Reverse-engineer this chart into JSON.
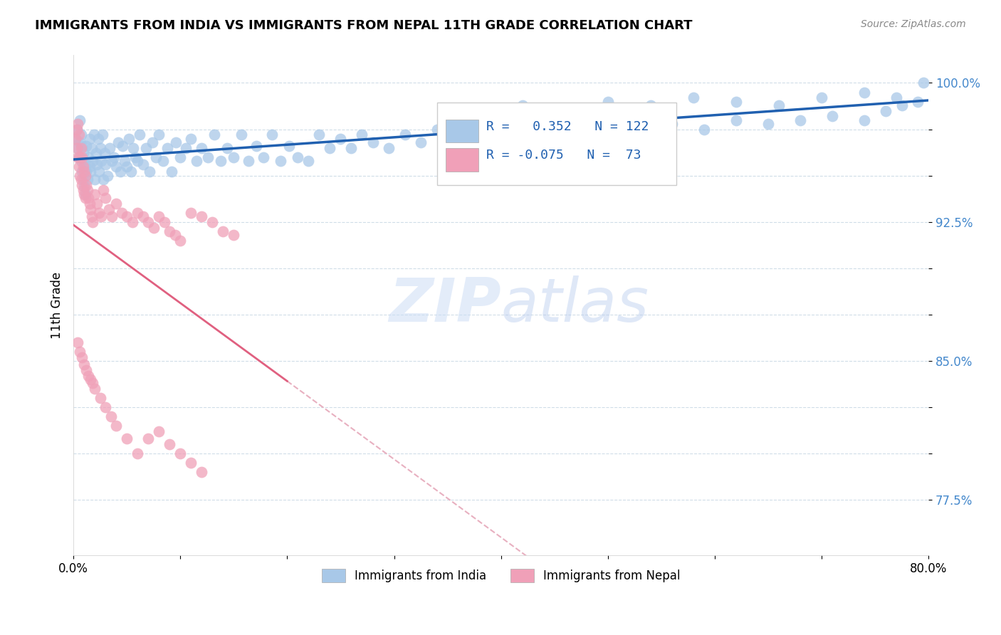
{
  "title": "IMMIGRANTS FROM INDIA VS IMMIGRANTS FROM NEPAL 11TH GRADE CORRELATION CHART",
  "source": "Source: ZipAtlas.com",
  "ylabel": "11th Grade",
  "xlim": [
    0.0,
    0.8
  ],
  "ylim": [
    0.745,
    1.015
  ],
  "india_R": 0.352,
  "india_N": 122,
  "nepal_R": -0.075,
  "nepal_N": 73,
  "india_color": "#a8c8e8",
  "nepal_color": "#f0a0b8",
  "india_line_color": "#2060b0",
  "nepal_line_solid_color": "#e06080",
  "nepal_line_dash_color": "#e8b0c0",
  "grid_color": "#d0dde8",
  "watermark_color": "#ccddf0",
  "india_points_x": [
    0.002,
    0.003,
    0.004,
    0.005,
    0.006,
    0.006,
    0.007,
    0.007,
    0.008,
    0.008,
    0.009,
    0.009,
    0.01,
    0.01,
    0.011,
    0.011,
    0.012,
    0.012,
    0.013,
    0.014,
    0.015,
    0.015,
    0.016,
    0.017,
    0.018,
    0.019,
    0.02,
    0.021,
    0.022,
    0.023,
    0.024,
    0.025,
    0.026,
    0.027,
    0.028,
    0.029,
    0.03,
    0.032,
    0.034,
    0.036,
    0.038,
    0.04,
    0.042,
    0.044,
    0.046,
    0.048,
    0.05,
    0.052,
    0.054,
    0.056,
    0.058,
    0.06,
    0.062,
    0.065,
    0.068,
    0.071,
    0.074,
    0.077,
    0.08,
    0.084,
    0.088,
    0.092,
    0.096,
    0.1,
    0.105,
    0.11,
    0.115,
    0.12,
    0.126,
    0.132,
    0.138,
    0.144,
    0.15,
    0.157,
    0.164,
    0.171,
    0.178,
    0.186,
    0.194,
    0.202,
    0.21,
    0.22,
    0.23,
    0.24,
    0.25,
    0.26,
    0.27,
    0.28,
    0.295,
    0.31,
    0.325,
    0.34,
    0.36,
    0.38,
    0.4,
    0.42,
    0.445,
    0.47,
    0.5,
    0.53,
    0.56,
    0.59,
    0.62,
    0.65,
    0.68,
    0.71,
    0.74,
    0.76,
    0.775,
    0.79,
    0.38,
    0.42,
    0.46,
    0.5,
    0.54,
    0.58,
    0.62,
    0.66,
    0.7,
    0.74,
    0.77,
    0.795
  ],
  "india_points_y": [
    0.97,
    0.975,
    0.965,
    0.96,
    0.968,
    0.98,
    0.958,
    0.972,
    0.952,
    0.966,
    0.948,
    0.962,
    0.944,
    0.958,
    0.94,
    0.955,
    0.952,
    0.966,
    0.948,
    0.96,
    0.955,
    0.97,
    0.952,
    0.965,
    0.958,
    0.972,
    0.948,
    0.962,
    0.956,
    0.97,
    0.952,
    0.965,
    0.958,
    0.972,
    0.948,
    0.962,
    0.956,
    0.95,
    0.965,
    0.958,
    0.96,
    0.955,
    0.968,
    0.952,
    0.966,
    0.958,
    0.955,
    0.97,
    0.952,
    0.965,
    0.96,
    0.958,
    0.972,
    0.956,
    0.965,
    0.952,
    0.968,
    0.96,
    0.972,
    0.958,
    0.965,
    0.952,
    0.968,
    0.96,
    0.965,
    0.97,
    0.958,
    0.965,
    0.96,
    0.972,
    0.958,
    0.965,
    0.96,
    0.972,
    0.958,
    0.966,
    0.96,
    0.972,
    0.958,
    0.966,
    0.96,
    0.958,
    0.972,
    0.965,
    0.97,
    0.965,
    0.972,
    0.968,
    0.965,
    0.972,
    0.968,
    0.975,
    0.972,
    0.968,
    0.975,
    0.972,
    0.968,
    0.975,
    0.972,
    0.975,
    0.978,
    0.975,
    0.98,
    0.978,
    0.98,
    0.982,
    0.98,
    0.985,
    0.988,
    0.99,
    0.985,
    0.988,
    0.985,
    0.99,
    0.988,
    0.992,
    0.99,
    0.988,
    0.992,
    0.995,
    0.992,
    1.0
  ],
  "nepal_points_x": [
    0.002,
    0.003,
    0.003,
    0.004,
    0.004,
    0.005,
    0.005,
    0.006,
    0.006,
    0.007,
    0.007,
    0.008,
    0.008,
    0.009,
    0.009,
    0.01,
    0.01,
    0.011,
    0.011,
    0.012,
    0.013,
    0.014,
    0.015,
    0.016,
    0.017,
    0.018,
    0.02,
    0.022,
    0.024,
    0.026,
    0.028,
    0.03,
    0.033,
    0.036,
    0.04,
    0.045,
    0.05,
    0.055,
    0.06,
    0.065,
    0.07,
    0.075,
    0.08,
    0.085,
    0.09,
    0.095,
    0.1,
    0.11,
    0.12,
    0.13,
    0.14,
    0.15,
    0.004,
    0.006,
    0.008,
    0.01,
    0.012,
    0.014,
    0.016,
    0.018,
    0.02,
    0.025,
    0.03,
    0.035,
    0.04,
    0.05,
    0.06,
    0.07,
    0.08,
    0.09,
    0.1,
    0.11,
    0.12
  ],
  "nepal_points_y": [
    0.97,
    0.975,
    0.965,
    0.978,
    0.96,
    0.955,
    0.972,
    0.96,
    0.95,
    0.965,
    0.948,
    0.96,
    0.945,
    0.955,
    0.942,
    0.952,
    0.94,
    0.95,
    0.938,
    0.945,
    0.942,
    0.938,
    0.935,
    0.932,
    0.928,
    0.925,
    0.94,
    0.935,
    0.93,
    0.928,
    0.942,
    0.938,
    0.932,
    0.928,
    0.935,
    0.93,
    0.928,
    0.925,
    0.93,
    0.928,
    0.925,
    0.922,
    0.928,
    0.925,
    0.92,
    0.918,
    0.915,
    0.93,
    0.928,
    0.925,
    0.92,
    0.918,
    0.86,
    0.855,
    0.852,
    0.848,
    0.845,
    0.842,
    0.84,
    0.838,
    0.835,
    0.83,
    0.825,
    0.82,
    0.815,
    0.808,
    0.8,
    0.808,
    0.812,
    0.805,
    0.8,
    0.795,
    0.79
  ]
}
